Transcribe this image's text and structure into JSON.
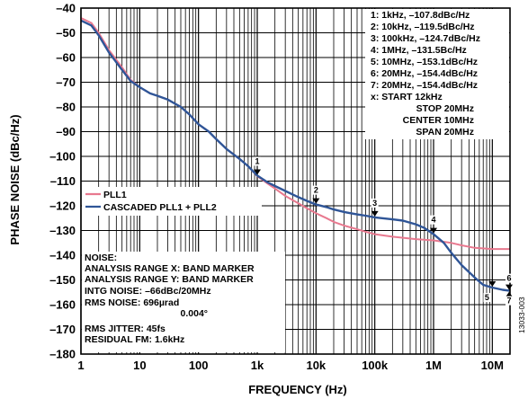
{
  "chart_data": {
    "type": "line",
    "xlabel": "FREQUENCY (Hz)",
    "ylabel": "PHASE NOISE (dBc/Hz)",
    "xscale": "log",
    "xlim": [
      1,
      20000000
    ],
    "ylim": [
      -180,
      -40
    ],
    "grid": true,
    "x_ticks": [
      {
        "value": 1,
        "label": "1"
      },
      {
        "value": 10,
        "label": "10"
      },
      {
        "value": 100,
        "label": "100"
      },
      {
        "value": 1000,
        "label": "1k"
      },
      {
        "value": 10000,
        "label": "10k"
      },
      {
        "value": 100000,
        "label": "100k"
      },
      {
        "value": 1000000,
        "label": "1M"
      },
      {
        "value": 10000000,
        "label": "10M"
      }
    ],
    "y_ticks": [
      {
        "value": -40,
        "label": "–40"
      },
      {
        "value": -50,
        "label": "–50"
      },
      {
        "value": -60,
        "label": "–60"
      },
      {
        "value": -70,
        "label": "–70"
      },
      {
        "value": -80,
        "label": "–80"
      },
      {
        "value": -90,
        "label": "–90"
      },
      {
        "value": -100,
        "label": "–100"
      },
      {
        "value": -110,
        "label": "–110"
      },
      {
        "value": -120,
        "label": "–120"
      },
      {
        "value": -130,
        "label": "–130"
      },
      {
        "value": -140,
        "label": "–140"
      },
      {
        "value": -150,
        "label": "–150"
      },
      {
        "value": -160,
        "label": "–160"
      },
      {
        "value": -170,
        "label": "–170"
      },
      {
        "value": -180,
        "label": "–180"
      }
    ],
    "legend": {
      "placement": "left",
      "entries": [
        {
          "label": "PLL1",
          "color": "#e8798f"
        },
        {
          "label": "CASCADED PLL1 + PLL2",
          "color": "#2f5597"
        }
      ]
    },
    "series": [
      {
        "name": "PLL1",
        "color": "#e8798f",
        "points": [
          [
            1,
            -44
          ],
          [
            1.5,
            -46
          ],
          [
            2,
            -50
          ],
          [
            3,
            -57
          ],
          [
            5,
            -64
          ],
          [
            7,
            -69
          ],
          [
            10,
            -72
          ],
          [
            15,
            -74.5
          ],
          [
            20,
            -75.5
          ],
          [
            30,
            -77
          ],
          [
            50,
            -80
          ],
          [
            70,
            -83
          ],
          [
            100,
            -87
          ],
          [
            150,
            -90
          ],
          [
            200,
            -93
          ],
          [
            300,
            -97
          ],
          [
            500,
            -101
          ],
          [
            700,
            -104
          ],
          [
            1000,
            -108
          ],
          [
            1500,
            -111
          ],
          [
            2000,
            -113
          ],
          [
            3000,
            -116
          ],
          [
            5000,
            -119
          ],
          [
            7000,
            -121
          ],
          [
            10000,
            -123
          ],
          [
            15000,
            -125
          ],
          [
            20000,
            -126.5
          ],
          [
            30000,
            -128
          ],
          [
            50000,
            -129.5
          ],
          [
            70000,
            -130.5
          ],
          [
            100000,
            -131.5
          ],
          [
            200000,
            -132.5
          ],
          [
            500000,
            -133.5
          ],
          [
            1000000,
            -134
          ],
          [
            2000000,
            -135
          ],
          [
            3000000,
            -136
          ],
          [
            5000000,
            -137
          ],
          [
            10000000,
            -137.5
          ],
          [
            20000000,
            -137.5
          ]
        ]
      },
      {
        "name": "CASCADED PLL1 + PLL2",
        "color": "#2f5597",
        "points": [
          [
            1,
            -45
          ],
          [
            1.5,
            -47
          ],
          [
            2,
            -51
          ],
          [
            3,
            -58
          ],
          [
            5,
            -65
          ],
          [
            7,
            -69.5
          ],
          [
            10,
            -72
          ],
          [
            15,
            -74.5
          ],
          [
            20,
            -75.5
          ],
          [
            30,
            -77
          ],
          [
            50,
            -80
          ],
          [
            70,
            -83
          ],
          [
            100,
            -87
          ],
          [
            150,
            -90
          ],
          [
            200,
            -93
          ],
          [
            300,
            -97
          ],
          [
            500,
            -101
          ],
          [
            700,
            -104
          ],
          [
            1000,
            -107.8
          ],
          [
            1500,
            -110.5
          ],
          [
            2000,
            -112
          ],
          [
            3000,
            -114
          ],
          [
            5000,
            -116.5
          ],
          [
            7000,
            -118
          ],
          [
            10000,
            -119.5
          ],
          [
            15000,
            -120.5
          ],
          [
            20000,
            -121.5
          ],
          [
            30000,
            -122.5
          ],
          [
            50000,
            -123.5
          ],
          [
            70000,
            -124
          ],
          [
            100000,
            -124.7
          ],
          [
            200000,
            -125.5
          ],
          [
            300000,
            -126
          ],
          [
            500000,
            -127.5
          ],
          [
            700000,
            -129
          ],
          [
            1000000,
            -131.5
          ],
          [
            1500000,
            -135
          ],
          [
            2000000,
            -139
          ],
          [
            3000000,
            -144
          ],
          [
            5000000,
            -149
          ],
          [
            7000000,
            -152
          ],
          [
            10000000,
            -153.1
          ],
          [
            15000000,
            -154
          ],
          [
            20000000,
            -154.4
          ]
        ]
      }
    ],
    "markers": [
      {
        "id": "1",
        "x": 1000,
        "y": -107.8
      },
      {
        "id": "2",
        "x": 10000,
        "y": -119.5
      },
      {
        "id": "3",
        "x": 100000,
        "y": -124.7
      },
      {
        "id": "4",
        "x": 1000000,
        "y": -131.5
      },
      {
        "id": "5",
        "x": 10000000,
        "y": -153.1
      },
      {
        "id": "6",
        "x": 20000000,
        "y": -154.4
      },
      {
        "id": "7",
        "x": 20000000,
        "y": -154.4
      }
    ],
    "marker_table": [
      "1:  1kHz, –107.8dBc/Hz",
      "2:  10kHz, –119.5dBc/Hz",
      "3:  100kHz, –124.7dBc/Hz",
      "4:  1MHz, –131.5Bc/Hz",
      "5:  10MHz, –153.1dBc/Hz",
      "6:  20MHz, –154.4dBc/Hz",
      "7:  20MHz, –154.4dBc/Hz",
      "x:    START 12kHz",
      "STOP 20MHz",
      "CENTER 10MHz",
      "SPAN 20MHz"
    ],
    "noise_box": [
      "NOISE:",
      "ANALYSIS RANGE X: BAND MARKER",
      "ANALYSIS RANGE Y: BAND MARKER",
      "INTG NOISE: –66dBc/20MHz",
      "RMS NOISE: 696µrad",
      "0.004°",
      "RMS JITTER: 45fs",
      "RESIDUAL FM: 1.6kHz"
    ],
    "figure_id": "13033-003"
  }
}
